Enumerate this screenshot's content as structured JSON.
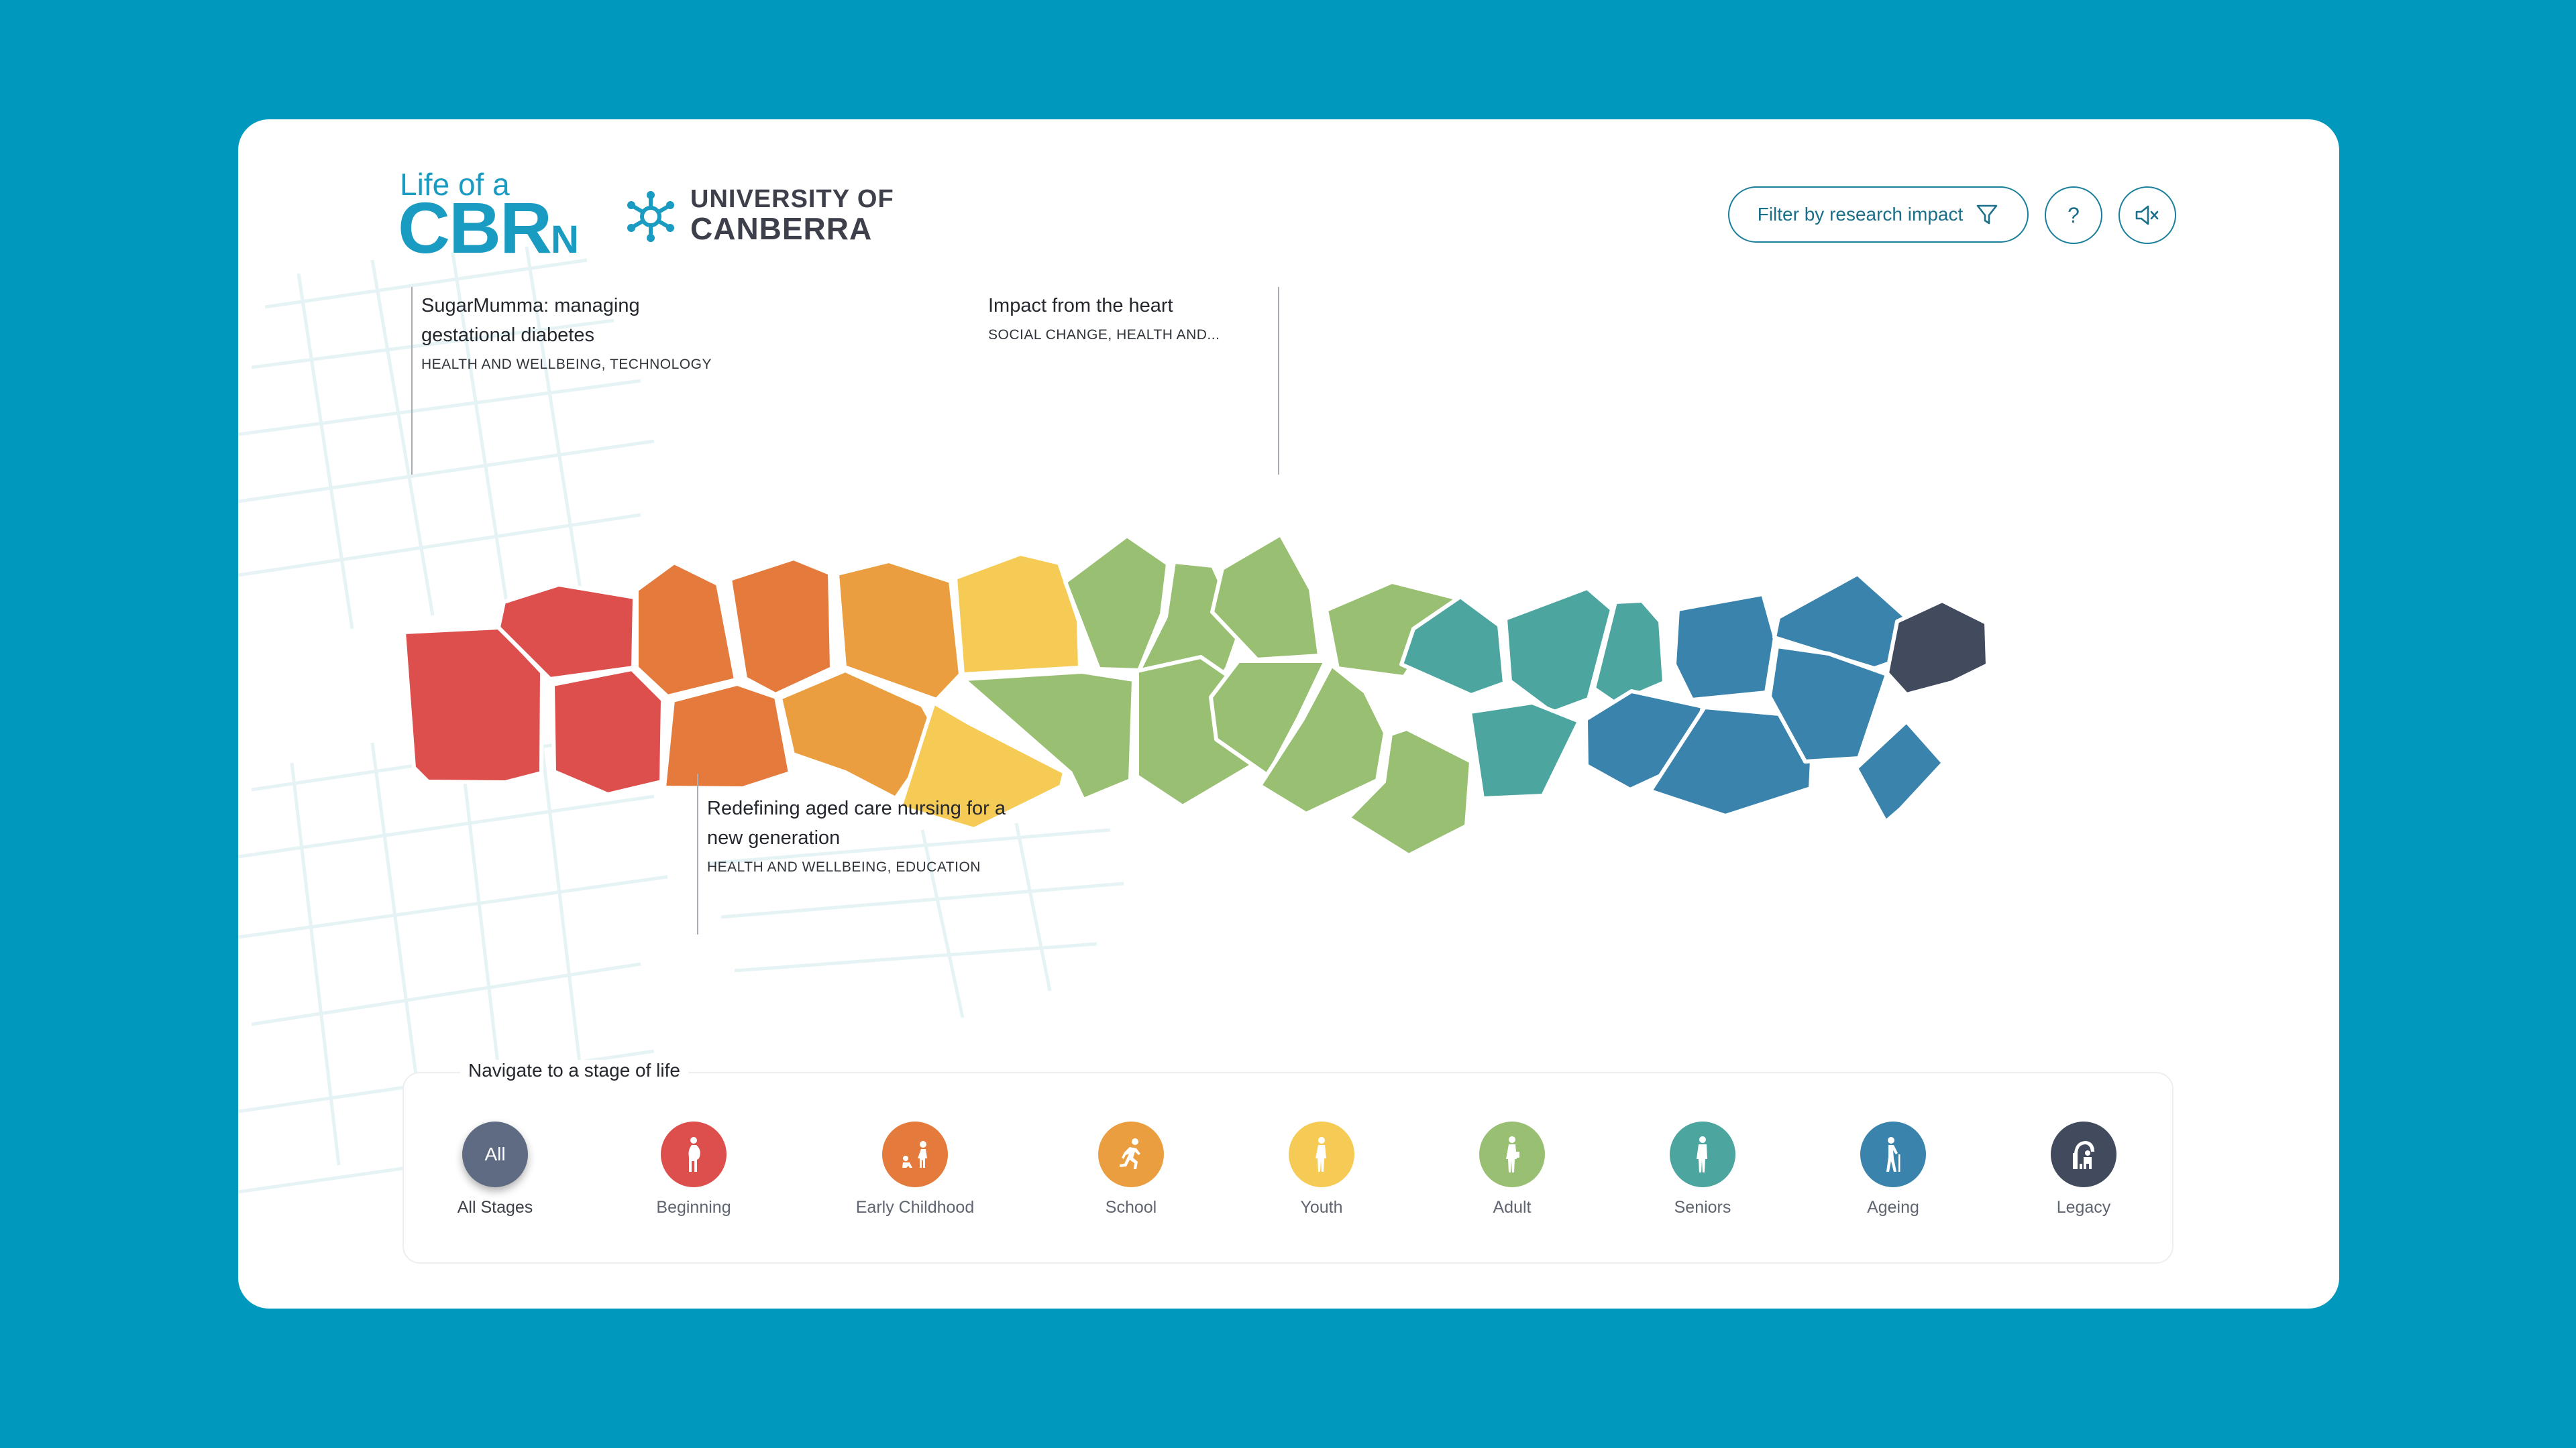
{
  "brand": {
    "app_logo_line1": "Life of a",
    "app_logo_main": "CBR",
    "app_logo_suffix": "N",
    "university_line1": "UNIVERSITY OF",
    "university_line2": "CANBERRA"
  },
  "header": {
    "filter_label": "Filter by research impact",
    "help_label": "?"
  },
  "callouts": [
    {
      "title_line1": "SugarMumma: managing",
      "title_line2": "gestational diabetes",
      "tags": "HEALTH AND WELLBEING, TECHNOLOGY"
    },
    {
      "title_line1": "Redefining aged care nursing for a",
      "title_line2": "new generation",
      "tags": "HEALTH AND WELLBEING, EDUCATION"
    },
    {
      "title_line1": "Impact from the heart",
      "title_line2": "",
      "tags": "SOCIAL CHANGE, HEALTH AND..."
    }
  ],
  "colors": {
    "beginning": "#dc4f4c",
    "early_childhood": "#e47a3c",
    "school": "#ea9e40",
    "youth": "#f5cb55",
    "adult": "#99bf72",
    "seniors": "#4ca59f",
    "ageing": "#3a83ad",
    "legacy": "#424a5e",
    "all": "#5f6b82"
  },
  "navigation": {
    "title": "Navigate to a stage of life",
    "all_circle_label": "All",
    "stages": [
      {
        "label": "All Stages",
        "color": "#5f6b82",
        "icon": "all-text",
        "active": true
      },
      {
        "label": "Beginning",
        "color": "#dc4f4c",
        "icon": "pregnant-figure-icon"
      },
      {
        "label": "Early Childhood",
        "color": "#e47a3c",
        "icon": "toddler-figures-icon"
      },
      {
        "label": "School",
        "color": "#ea9e40",
        "icon": "running-child-icon"
      },
      {
        "label": "Youth",
        "color": "#f5cb55",
        "icon": "teen-figure-icon"
      },
      {
        "label": "Adult",
        "color": "#99bf72",
        "icon": "adult-figure-icon"
      },
      {
        "label": "Seniors",
        "color": "#4ca59f",
        "icon": "senior-figure-icon"
      },
      {
        "label": "Ageing",
        "color": "#3a83ad",
        "icon": "cane-figure-icon"
      },
      {
        "label": "Legacy",
        "color": "#424a5e",
        "icon": "legacy-figures-icon"
      }
    ]
  }
}
